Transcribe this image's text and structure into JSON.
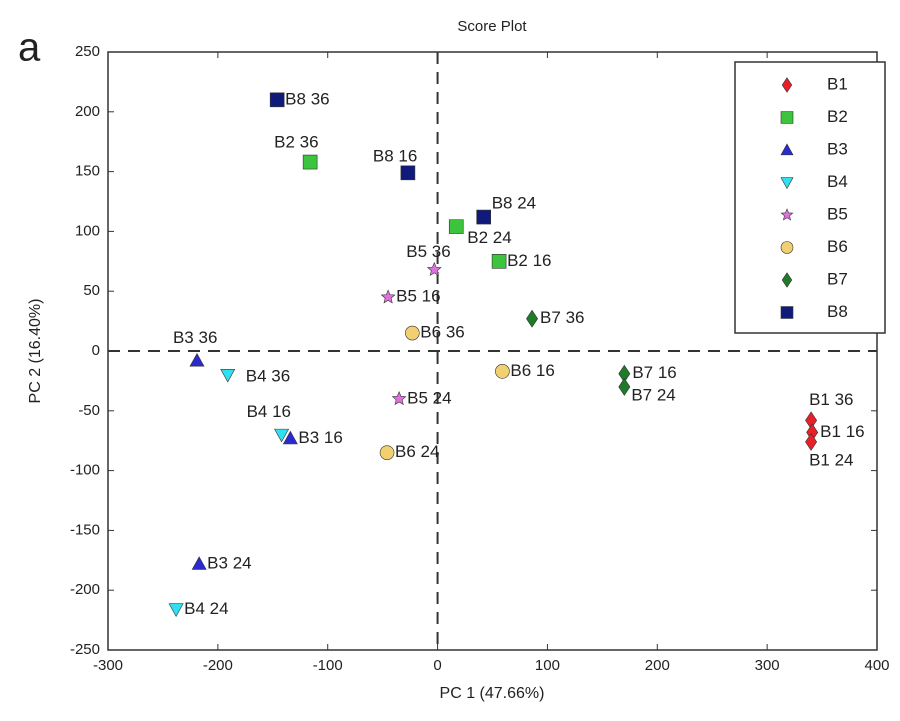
{
  "panel_label": "a",
  "chart_data": {
    "type": "scatter",
    "title": "Score Plot",
    "x_label": "PC 1 (47.66%)",
    "y_label": "PC 2 (16.40%)",
    "xlim": [
      -300,
      400
    ],
    "xticks": [
      -300,
      -200,
      -100,
      0,
      100,
      200,
      300,
      400
    ],
    "ylim": [
      -250,
      250
    ],
    "yticks": [
      -250,
      -200,
      -150,
      -100,
      -50,
      0,
      50,
      100,
      150,
      200,
      250
    ],
    "zero_lines": true,
    "legend": "upper right",
    "series": [
      {
        "name": "B1",
        "color": "#e8202a",
        "marker": "diamond",
        "x": [
          340,
          341,
          340
        ],
        "values": [
          -58,
          -68,
          -76
        ],
        "labels": [
          "B1 36",
          "B1 16",
          "B1 24"
        ]
      },
      {
        "name": "B2",
        "color": "#3cc43c",
        "marker": "square",
        "x": [
          -116,
          17,
          56
        ],
        "values": [
          158,
          104,
          75
        ],
        "labels": [
          "B2 36",
          "B2 24",
          "B2 16"
        ]
      },
      {
        "name": "B3",
        "color": "#2a2ad0",
        "marker": "triangle-up",
        "x": [
          -219,
          -134,
          -217
        ],
        "values": [
          -8,
          -73,
          -178
        ],
        "labels": [
          "B3 36",
          "B3 16",
          "B3 24"
        ]
      },
      {
        "name": "B4",
        "color": "#30e0f0",
        "marker": "triangle-down",
        "x": [
          -191,
          -142,
          -238
        ],
        "values": [
          -20,
          -70,
          -216
        ],
        "labels": [
          "B4 36",
          "B4 16",
          "B4 24"
        ]
      },
      {
        "name": "B5",
        "color": "#e070e0",
        "marker": "star",
        "x": [
          -3,
          -45,
          -35
        ],
        "values": [
          68,
          45,
          -40
        ],
        "labels": [
          "B5 36",
          "B5 16",
          "B5 24"
        ]
      },
      {
        "name": "B6",
        "color": "#f0d070",
        "marker": "circle",
        "x": [
          -23,
          59,
          -46
        ],
        "values": [
          15,
          -17,
          -85
        ],
        "labels": [
          "B6 36",
          "B6 16",
          "B6 24"
        ]
      },
      {
        "name": "B7",
        "color": "#1f7a2a",
        "marker": "diamond",
        "x": [
          86,
          170,
          170
        ],
        "values": [
          27,
          -19,
          -30
        ],
        "labels": [
          "B7 36",
          "B7 16",
          "B7 24"
        ]
      },
      {
        "name": "B8",
        "color": "#101a7a",
        "marker": "square",
        "x": [
          -146,
          -27,
          42
        ],
        "values": [
          210,
          149,
          112
        ],
        "labels": [
          "B8 36",
          "B8 16",
          "B8 24"
        ]
      }
    ]
  }
}
